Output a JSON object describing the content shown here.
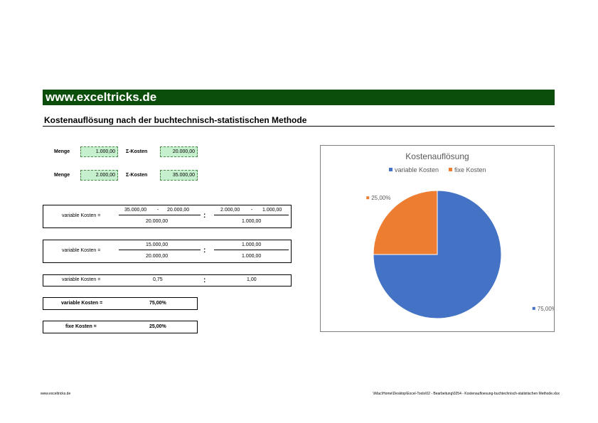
{
  "header": {
    "site": "www.exceltricks.de",
    "title": "Kostenauflösung nach der buchtechnisch-statistischen Methode"
  },
  "inputs": {
    "row1": {
      "menge_label": "Menge",
      "menge_value": "1.000,00",
      "sum_label": "Σ-Kosten",
      "sum_value": "20.000,00"
    },
    "row2": {
      "menge_label": "Menge",
      "menge_value": "2.000,00",
      "sum_label": "Σ-Kosten",
      "sum_value": "35.000,00"
    }
  },
  "calc1": {
    "label": "variable Kosten =",
    "num_left_a": "35.000,00",
    "minus1": "-",
    "num_left_b": "20.000,00",
    "den_left": "20.000,00",
    "colon": ":",
    "num_right_a": "2.000,00",
    "minus2": "-",
    "num_right_b": "1.000,00",
    "den_right": "1.000,00"
  },
  "calc2": {
    "label": "variable Kosten =",
    "num_left": "15.000,00",
    "den_left": "20.000,00",
    "colon": ":",
    "num_right": "1.000,00",
    "den_right": "1.000,00"
  },
  "calc3": {
    "label": "variable Kosten =",
    "left": "0,75",
    "colon": ":",
    "right": "1,00"
  },
  "results": {
    "variable_label": "variable Kosten =",
    "variable_value": "75,00%",
    "fixe_label": "fixe Kosten =",
    "fixe_value": "25,00%"
  },
  "chart_data": {
    "type": "pie",
    "title": "Kostenauflösung",
    "legend_position": "top",
    "series": [
      {
        "name": "variable Kosten",
        "value": 75,
        "label": "75,00%",
        "color": "#4472c4"
      },
      {
        "name": "fixe Kosten",
        "value": 25,
        "label": "25,00%",
        "color": "#ed7d31"
      }
    ]
  },
  "footer": {
    "left": "www.exceltricks.de",
    "right": "\\\\Mac\\Home\\Desktop\\Excel-Tools\\02 - Bearbeitung\\0254 - Kostenaufloesung-buchtechnisch-statistischen Methode.xlsx"
  }
}
